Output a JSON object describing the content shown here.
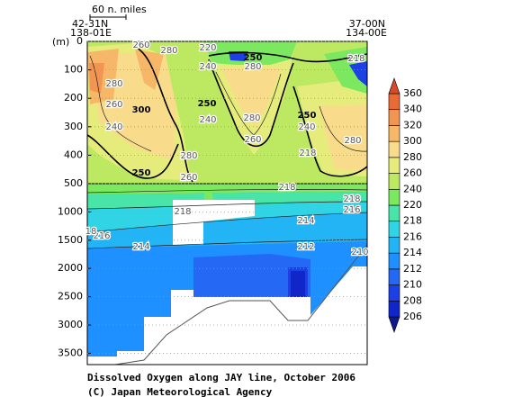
{
  "chart_data": {
    "type": "contour",
    "title": "Dissolved Oxygen along JAY line, October 2006",
    "y_label": "(m)",
    "panels": [
      {
        "ylim": [
          0,
          500
        ],
        "yticks": [
          0,
          100,
          200,
          300,
          400,
          500
        ]
      },
      {
        "ylim": [
          500,
          3700
        ],
        "yticks": [
          1000,
          1500,
          2000,
          2500,
          3000,
          3500
        ]
      }
    ],
    "grid": true,
    "colorbar": {
      "levels": [
        206,
        208,
        210,
        212,
        214,
        216,
        218,
        220,
        240,
        260,
        280,
        300,
        320,
        340,
        360
      ],
      "colors": [
        "#0c1a8c",
        "#1026c8",
        "#1c40e4",
        "#2468f4",
        "#1e90ff",
        "#22b4f4",
        "#30d4e4",
        "#48e4a8",
        "#7ce860",
        "#bce862",
        "#e6ec7c",
        "#f8dc8c",
        "#f6b868",
        "#f29452",
        "#ea6a34",
        "#d8482a"
      ]
    },
    "contour_labels": [
      260,
      280,
      220,
      240,
      250,
      280,
      218,
      280,
      260,
      300,
      250,
      240,
      280,
      250,
      240,
      240,
      260,
      280,
      280,
      218,
      250,
      260,
      218,
      218,
      216,
      218,
      214,
      216,
      18,
      214,
      212,
      210
    ]
  },
  "header": {
    "scale": "60 n. miles",
    "left_lat": "42-31N",
    "left_lon": "138-01E",
    "right_lat": "37-00N",
    "right_lon": "134-00E"
  },
  "footer": {
    "credit": "(C) Japan Meteorological Agency"
  }
}
